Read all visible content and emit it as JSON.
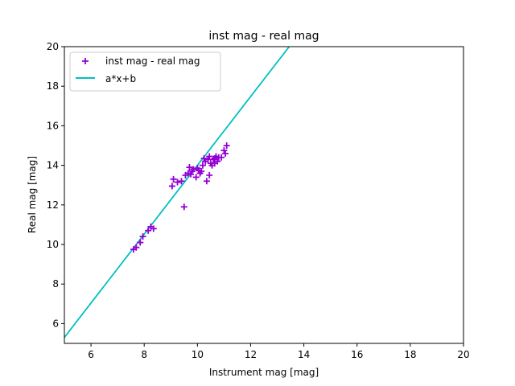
{
  "chart_data": {
    "type": "scatter",
    "title": "inst mag - real mag",
    "xlabel": "Instrument mag [mag]",
    "ylabel": "Real mag [mag]",
    "xlim": [
      5,
      20
    ],
    "ylim": [
      5,
      20
    ],
    "x_ticks": [
      6,
      8,
      10,
      12,
      14,
      16,
      18,
      20
    ],
    "y_ticks": [
      6,
      8,
      10,
      12,
      14,
      16,
      18,
      20
    ],
    "grid": false,
    "legend_position": "top-left",
    "series": [
      {
        "name": "inst mag - real mag",
        "kind": "scatter",
        "marker": "plus",
        "color": "#9400d3",
        "points": [
          [
            7.6,
            9.75
          ],
          [
            7.7,
            9.85
          ],
          [
            7.85,
            10.1
          ],
          [
            7.95,
            10.4
          ],
          [
            8.15,
            10.7
          ],
          [
            8.25,
            10.9
          ],
          [
            8.35,
            10.8
          ],
          [
            9.05,
            12.95
          ],
          [
            9.1,
            13.3
          ],
          [
            9.25,
            13.15
          ],
          [
            9.4,
            13.2
          ],
          [
            9.5,
            11.9
          ],
          [
            9.55,
            13.5
          ],
          [
            9.65,
            13.6
          ],
          [
            9.7,
            13.9
          ],
          [
            9.75,
            13.55
          ],
          [
            9.85,
            13.8
          ],
          [
            9.95,
            13.4
          ],
          [
            10.0,
            13.85
          ],
          [
            10.05,
            13.75
          ],
          [
            10.1,
            13.6
          ],
          [
            10.15,
            13.7
          ],
          [
            10.2,
            14.0
          ],
          [
            10.3,
            14.2
          ],
          [
            10.35,
            13.2
          ],
          [
            10.4,
            14.3
          ],
          [
            10.45,
            13.5
          ],
          [
            10.5,
            14.1
          ],
          [
            10.55,
            14.0
          ],
          [
            10.6,
            14.3
          ],
          [
            10.65,
            14.1
          ],
          [
            10.7,
            14.45
          ],
          [
            10.75,
            14.2
          ],
          [
            10.8,
            14.4
          ],
          [
            10.9,
            14.4
          ],
          [
            11.0,
            14.75
          ],
          [
            11.05,
            14.6
          ],
          [
            11.1,
            15.0
          ],
          [
            10.25,
            14.35
          ],
          [
            10.45,
            14.45
          ],
          [
            9.8,
            13.7
          ],
          [
            10.65,
            14.35
          ]
        ]
      },
      {
        "name": "a*x+b",
        "kind": "line",
        "color": "#00bfbf",
        "points": [
          [
            5.0,
            5.3
          ],
          [
            13.45,
            20.0
          ]
        ]
      }
    ]
  }
}
